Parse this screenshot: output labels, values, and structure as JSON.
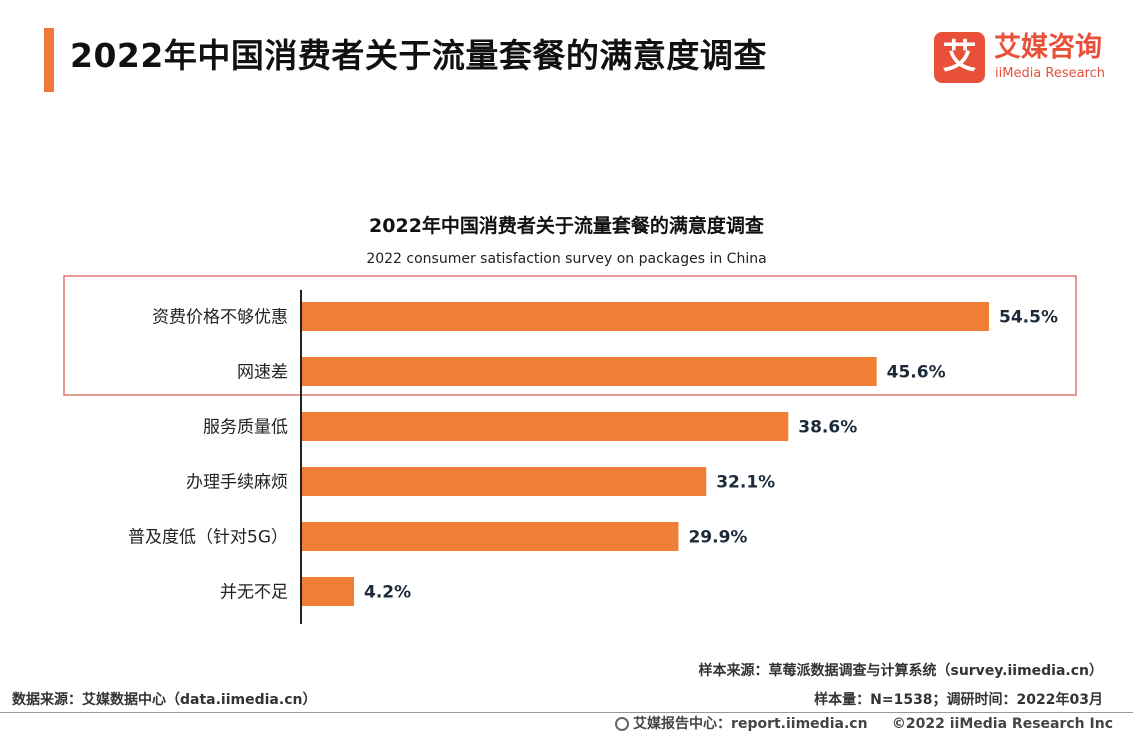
{
  "header": {
    "title": "2022年中国消费者关于流量套餐的满意度调查",
    "logo_glyph": "艾",
    "logo_cn": "艾媒咨询",
    "logo_en": "iiMedia Research",
    "accent_color": "#ee7a3a",
    "logo_color": "#e8503a"
  },
  "chart_data": {
    "type": "bar",
    "orientation": "horizontal",
    "title": "2022年中国消费者关于流量套餐的满意度调查",
    "subtitle": "2022 consumer satisfaction survey on packages in China",
    "categories": [
      "资费价格不够优惠",
      "网速差",
      "服务质量低",
      "办理手续麻烦",
      "普及度低（针对5G）",
      "并无不足"
    ],
    "values": [
      54.5,
      45.6,
      38.6,
      32.1,
      29.9,
      4.2
    ],
    "value_labels": [
      "54.5%",
      "45.6%",
      "38.6%",
      "32.1%",
      "29.9%",
      "4.2%"
    ],
    "unit": "%",
    "xlim": [
      0,
      60
    ],
    "bar_color": "#ef7f34",
    "highlight_color": "#d9534f",
    "highlighted_categories": [
      "资费价格不够优惠",
      "网速差"
    ],
    "grid": false,
    "legend": "none"
  },
  "sources": {
    "sample_source": "样本来源：草莓派数据调查与计算系统（survey.iimedia.cn）",
    "sample_size": "样本量：N=1538；调研时间：2022年03月",
    "data_source": "数据来源：艾媒数据中心（data.iimedia.cn）",
    "footer_report": "艾媒报告中心：report.iimedia.cn",
    "footer_copyright": "©2022  iiMedia Research  Inc"
  }
}
